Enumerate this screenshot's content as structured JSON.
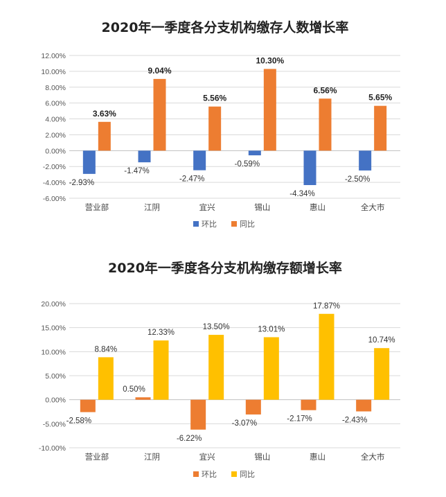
{
  "chart_data": [
    {
      "type": "bar",
      "title": "2020年一季度各分支机构缴存人数增长率",
      "categories": [
        "营业部",
        "江阴",
        "宜兴",
        "锡山",
        "惠山",
        "全大市"
      ],
      "series": [
        {
          "name": "环比",
          "color": "#4472C4",
          "values": [
            -2.93,
            -1.47,
            -2.47,
            -0.59,
            -4.34,
            -2.5
          ],
          "labels": [
            "-2.93%",
            "-1.47%",
            "-2.47%",
            "-0.59%",
            "-4.34%",
            "-2.50%"
          ]
        },
        {
          "name": "同比",
          "color": "#ED7D31",
          "values": [
            3.63,
            9.04,
            5.56,
            10.3,
            6.56,
            5.65
          ],
          "labels": [
            "3.63%",
            "9.04%",
            "5.56%",
            "10.30%",
            "6.56%",
            "5.65%"
          ]
        }
      ],
      "ylim": [
        -6,
        12
      ],
      "yticks": [
        12,
        10,
        8,
        6,
        4,
        2,
        0,
        -2,
        -4,
        -6
      ],
      "ytick_labels": [
        "12.00%",
        "10.00%",
        "8.00%",
        "6.00%",
        "4.00%",
        "2.00%",
        "0.00%",
        "-2.00%",
        "-4.00%",
        "-6.00%"
      ],
      "grid": true,
      "legend": "bottom-center"
    },
    {
      "type": "bar",
      "title": "2020年一季度各分支机构缴存额增长率",
      "categories": [
        "营业部",
        "江阴",
        "宜兴",
        "锡山",
        "惠山",
        "全大市"
      ],
      "series": [
        {
          "name": "环比",
          "color": "#ED7D31",
          "values": [
            -2.58,
            0.5,
            -6.22,
            -3.07,
            -2.17,
            -2.43
          ],
          "labels": [
            "-2.58%",
            "0.50%",
            "-6.22%",
            "-3.07%",
            "-2.17%",
            "-2.43%"
          ]
        },
        {
          "name": "同比",
          "color": "#FFC000",
          "values": [
            8.84,
            12.33,
            13.5,
            13.01,
            17.87,
            10.74
          ],
          "labels": [
            "8.84%",
            "12.33%",
            "13.50%",
            "13.01%",
            "17.87%",
            "10.74%"
          ]
        }
      ],
      "ylim": [
        -10,
        20
      ],
      "yticks": [
        20,
        15,
        10,
        5,
        0,
        -5,
        -10
      ],
      "ytick_labels": [
        "20.00%",
        "15.00%",
        "10.00%",
        "5.00%",
        "0.00%",
        "-5.00%",
        "-10.00%"
      ],
      "grid": true,
      "legend": "bottom-center"
    }
  ]
}
